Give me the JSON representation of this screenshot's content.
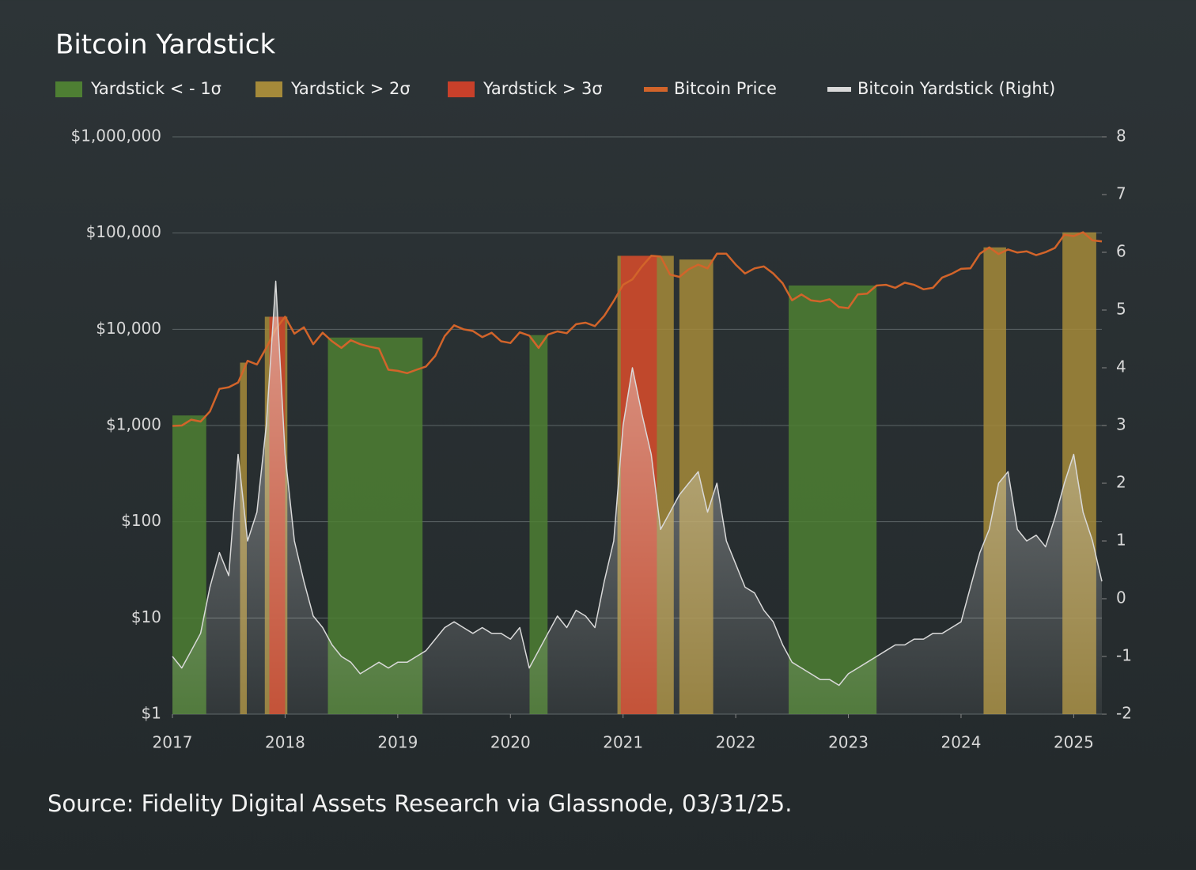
{
  "chart_data": {
    "type": "line",
    "title": "Bitcoin Yardstick",
    "source": "Source: Fidelity Digital Assets Research via Glassnode, 03/31/25.",
    "xlim": [
      2017,
      2025.25
    ],
    "xticks": [
      2017,
      2018,
      2019,
      2020,
      2021,
      2022,
      2023,
      2024,
      2025
    ],
    "ylim": [
      1,
      1000000
    ],
    "ylog": true,
    "yticks": [
      {
        "value": 1,
        "label": "$1"
      },
      {
        "value": 10,
        "label": "$10"
      },
      {
        "value": 100,
        "label": "$100"
      },
      {
        "value": 1000,
        "label": "$1,000"
      },
      {
        "value": 10000,
        "label": "$10,000"
      },
      {
        "value": 100000,
        "label": "$100,000"
      },
      {
        "value": 1000000,
        "label": "$1,000,000"
      }
    ],
    "y2lim": [
      -2,
      8
    ],
    "y2ticks": [
      -2,
      -1,
      0,
      1,
      2,
      3,
      4,
      5,
      6,
      7,
      8
    ],
    "grid": true,
    "bands": [
      {
        "name": "Yardstick < - 1σ",
        "color": "#4e7f33",
        "ranges": [
          [
            2017.0,
            2017.3
          ],
          [
            2018.38,
            2019.22
          ],
          [
            2020.17,
            2020.33
          ],
          [
            2022.47,
            2023.25
          ]
        ]
      },
      {
        "name": "Yardstick > 2σ",
        "color": "#a58a3a",
        "ranges": [
          [
            2017.6,
            2017.66
          ],
          [
            2017.82,
            2018.02
          ],
          [
            2020.95,
            2021.45
          ],
          [
            2021.5,
            2021.8
          ],
          [
            2024.2,
            2024.4
          ],
          [
            2024.9,
            2025.2
          ]
        ]
      },
      {
        "name": "Yardstick > 3σ",
        "color": "#c8402a",
        "ranges": [
          [
            2017.86,
            2018.0
          ],
          [
            2020.98,
            2021.3
          ]
        ]
      }
    ],
    "x": [
      2017,
      2017.083,
      2017.167,
      2017.25,
      2017.333,
      2017.417,
      2017.5,
      2017.583,
      2017.667,
      2017.75,
      2017.833,
      2017.917,
      2018,
      2018.083,
      2018.167,
      2018.25,
      2018.333,
      2018.417,
      2018.5,
      2018.583,
      2018.667,
      2018.75,
      2018.833,
      2018.917,
      2019,
      2019.083,
      2019.167,
      2019.25,
      2019.333,
      2019.417,
      2019.5,
      2019.583,
      2019.667,
      2019.75,
      2019.833,
      2019.917,
      2020,
      2020.083,
      2020.167,
      2020.25,
      2020.333,
      2020.417,
      2020.5,
      2020.583,
      2020.667,
      2020.75,
      2020.833,
      2020.917,
      2021,
      2021.083,
      2021.167,
      2021.25,
      2021.333,
      2021.417,
      2021.5,
      2021.583,
      2021.667,
      2021.75,
      2021.833,
      2021.917,
      2022,
      2022.083,
      2022.167,
      2022.25,
      2022.333,
      2022.417,
      2022.5,
      2022.583,
      2022.667,
      2022.75,
      2022.833,
      2022.917,
      2023,
      2023.083,
      2023.167,
      2023.25,
      2023.333,
      2023.417,
      2023.5,
      2023.583,
      2023.667,
      2023.75,
      2023.833,
      2023.917,
      2024,
      2024.083,
      2024.167,
      2024.25,
      2024.333,
      2024.417,
      2024.5,
      2024.583,
      2024.667,
      2024.75,
      2024.833,
      2024.917,
      2025,
      2025.083,
      2025.167,
      2025.25
    ],
    "series": [
      {
        "name": "Bitcoin Price",
        "color": "#d2642a",
        "values": [
          990,
          1000,
          1150,
          1100,
          1400,
          2400,
          2500,
          2800,
          4700,
          4300,
          6400,
          10000,
          13500,
          9000,
          10500,
          7000,
          9200,
          7500,
          6400,
          7700,
          7000,
          6600,
          6300,
          3800,
          3700,
          3500,
          3800,
          4100,
          5300,
          8500,
          11000,
          10000,
          9600,
          8300,
          9200,
          7500,
          7200,
          9300,
          8600,
          6400,
          8800,
          9500,
          9100,
          11300,
          11700,
          10800,
          13800,
          19700,
          29000,
          33000,
          45000,
          58000,
          57000,
          37000,
          35000,
          42000,
          47000,
          43000,
          61000,
          61000,
          47000,
          38000,
          43000,
          45000,
          38000,
          30000,
          20000,
          23000,
          20000,
          19400,
          20500,
          17000,
          16600,
          23000,
          23500,
          28500,
          29000,
          27000,
          30500,
          29000,
          26000,
          27000,
          34500,
          37700,
          42500,
          43000,
          61000,
          71000,
          60500,
          67500,
          62700,
          64600,
          58900,
          63300,
          70000,
          96000,
          93000,
          102000,
          84000,
          82000
        ]
      },
      {
        "name": "Bitcoin Yardstick (Right)",
        "color": "#d9d9d9",
        "axis": "y2",
        "values": [
          -1,
          -1.2,
          -0.9,
          -0.6,
          0.2,
          0.8,
          0.4,
          2.5,
          1,
          1.5,
          3,
          5.5,
          2.5,
          1,
          0.3,
          -0.3,
          -0.5,
          -0.8,
          -1,
          -1.1,
          -1.3,
          -1.2,
          -1.1,
          -1.2,
          -1.1,
          -1.1,
          -1,
          -0.9,
          -0.7,
          -0.5,
          -0.4,
          -0.5,
          -0.6,
          -0.5,
          -0.6,
          -0.6,
          -0.7,
          -0.5,
          -1.2,
          -0.9,
          -0.6,
          -0.3,
          -0.5,
          -0.2,
          -0.3,
          -0.5,
          0.3,
          1,
          3,
          4,
          3.2,
          2.5,
          1.2,
          1.5,
          1.8,
          2,
          2.2,
          1.5,
          2,
          1,
          0.6,
          0.2,
          0.1,
          -0.2,
          -0.4,
          -0.8,
          -1.1,
          -1.2,
          -1.3,
          -1.4,
          -1.4,
          -1.5,
          -1.3,
          -1.2,
          -1.1,
          -1,
          -0.9,
          -0.8,
          -0.8,
          -0.7,
          -0.7,
          -0.6,
          -0.6,
          -0.5,
          -0.4,
          0.2,
          0.8,
          1.2,
          2,
          2.2,
          1.2,
          1,
          1.1,
          0.9,
          1.4,
          2,
          2.5,
          1.5,
          1,
          0.3
        ]
      }
    ]
  }
}
